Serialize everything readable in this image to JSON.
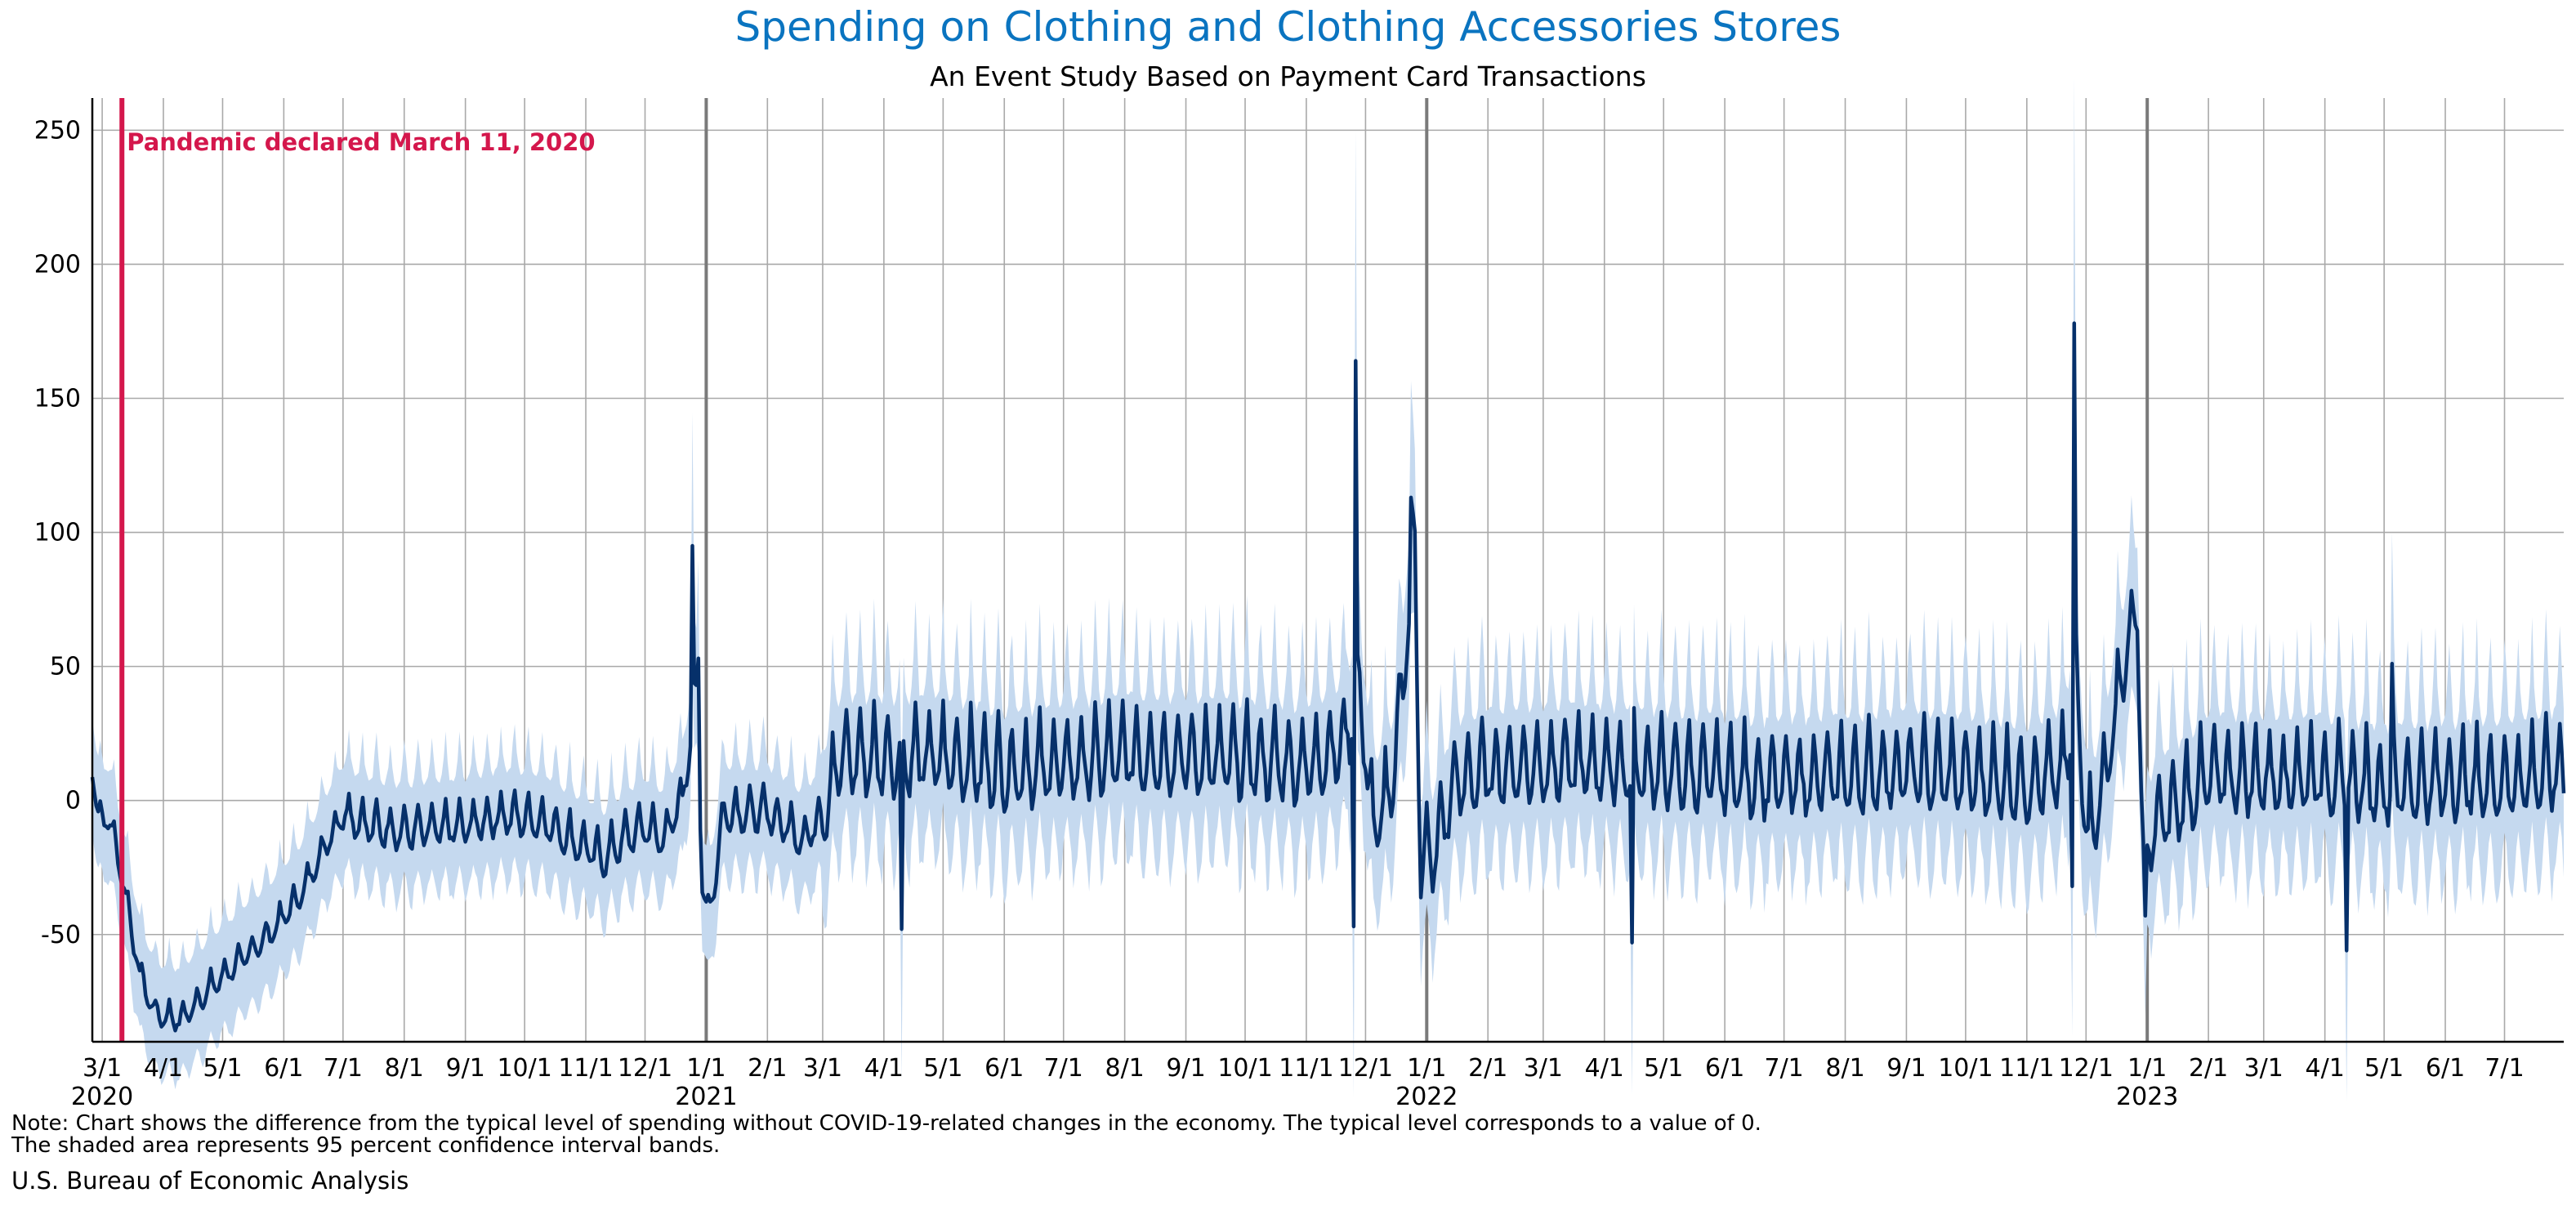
{
  "chart_data": {
    "type": "line",
    "title": "Spending on Clothing and Clothing Accessories Stores",
    "subtitle": "An Event Study Based on Payment Card Transactions",
    "ylim": [
      -90,
      262
    ],
    "yticks": [
      250,
      200,
      150,
      100,
      50,
      0,
      -50
    ],
    "x_range": [
      "2020-02-25",
      "2023-07-31"
    ],
    "grid": true,
    "xtick_labels": [
      {
        "date": "2020-03-01",
        "label": "3/1"
      },
      {
        "date": "2020-04-01",
        "label": "4/1"
      },
      {
        "date": "2020-05-01",
        "label": "5/1"
      },
      {
        "date": "2020-06-01",
        "label": "6/1"
      },
      {
        "date": "2020-07-01",
        "label": "7/1"
      },
      {
        "date": "2020-08-01",
        "label": "8/1"
      },
      {
        "date": "2020-09-01",
        "label": "9/1"
      },
      {
        "date": "2020-10-01",
        "label": "10/1"
      },
      {
        "date": "2020-11-01",
        "label": "11/1"
      },
      {
        "date": "2020-12-01",
        "label": "12/1"
      },
      {
        "date": "2021-01-01",
        "label": "1/1"
      },
      {
        "date": "2021-02-01",
        "label": "2/1"
      },
      {
        "date": "2021-03-01",
        "label": "3/1"
      },
      {
        "date": "2021-04-01",
        "label": "4/1"
      },
      {
        "date": "2021-05-01",
        "label": "5/1"
      },
      {
        "date": "2021-06-01",
        "label": "6/1"
      },
      {
        "date": "2021-07-01",
        "label": "7/1"
      },
      {
        "date": "2021-08-01",
        "label": "8/1"
      },
      {
        "date": "2021-09-01",
        "label": "9/1"
      },
      {
        "date": "2021-10-01",
        "label": "10/1"
      },
      {
        "date": "2021-11-01",
        "label": "11/1"
      },
      {
        "date": "2021-12-01",
        "label": "12/1"
      },
      {
        "date": "2022-01-01",
        "label": "1/1"
      },
      {
        "date": "2022-02-01",
        "label": "2/1"
      },
      {
        "date": "2022-03-01",
        "label": "3/1"
      },
      {
        "date": "2022-04-01",
        "label": "4/1"
      },
      {
        "date": "2022-05-01",
        "label": "5/1"
      },
      {
        "date": "2022-06-01",
        "label": "6/1"
      },
      {
        "date": "2022-07-01",
        "label": "7/1"
      },
      {
        "date": "2022-08-01",
        "label": "8/1"
      },
      {
        "date": "2022-09-01",
        "label": "9/1"
      },
      {
        "date": "2022-10-01",
        "label": "10/1"
      },
      {
        "date": "2022-11-01",
        "label": "11/1"
      },
      {
        "date": "2022-12-01",
        "label": "12/1"
      },
      {
        "date": "2023-01-01",
        "label": "1/1"
      },
      {
        "date": "2023-02-01",
        "label": "2/1"
      },
      {
        "date": "2023-03-01",
        "label": "3/1"
      },
      {
        "date": "2023-04-01",
        "label": "4/1"
      },
      {
        "date": "2023-05-01",
        "label": "5/1"
      },
      {
        "date": "2023-06-01",
        "label": "6/1"
      },
      {
        "date": "2023-07-01",
        "label": "7/1"
      }
    ],
    "year_labels": [
      {
        "date": "2020-03-01",
        "label": "2020"
      },
      {
        "date": "2021-01-01",
        "label": "2021"
      },
      {
        "date": "2022-01-01",
        "label": "2022"
      },
      {
        "date": "2023-01-01",
        "label": "2023"
      }
    ],
    "year_boundaries": [
      "2021-01-01",
      "2022-01-01",
      "2023-01-01"
    ],
    "event_line": {
      "date": "2020-03-11",
      "label": "Pandemic declared March 11, 2020",
      "color": "#d4174c"
    },
    "series": [
      {
        "line_color": "#06306a",
        "band_color": "#c5d9ef",
        "anchors": [
          [
            "2020-02-25",
            12
          ],
          [
            "2020-02-28",
            -6
          ],
          [
            "2020-03-05",
            -8
          ],
          [
            "2020-03-11",
            -28
          ],
          [
            "2020-03-20",
            -65
          ],
          [
            "2020-03-28",
            -80
          ],
          [
            "2020-04-10",
            -82
          ],
          [
            "2020-04-25",
            -70
          ],
          [
            "2020-05-10",
            -60
          ],
          [
            "2020-05-25",
            -50
          ],
          [
            "2020-06-10",
            -35
          ],
          [
            "2020-06-20",
            -20
          ],
          [
            "2020-07-01",
            -5
          ],
          [
            "2020-07-15",
            -10
          ],
          [
            "2020-08-01",
            -12
          ],
          [
            "2020-09-01",
            -10
          ],
          [
            "2020-09-20",
            -6
          ],
          [
            "2020-10-10",
            -8
          ],
          [
            "2020-10-25",
            -15
          ],
          [
            "2020-11-10",
            -22
          ],
          [
            "2020-11-20",
            -15
          ],
          [
            "2020-12-01",
            -10
          ],
          [
            "2020-12-10",
            -15
          ],
          [
            "2020-12-20",
            0
          ],
          [
            "2020-12-27",
            40
          ],
          [
            "2020-12-30",
            -30
          ],
          [
            "2021-01-02",
            -45
          ],
          [
            "2021-01-10",
            -5
          ],
          [
            "2021-02-01",
            -5
          ],
          [
            "2021-02-20",
            -15
          ],
          [
            "2021-03-01",
            -5
          ],
          [
            "2021-03-10",
            15
          ],
          [
            "2021-04-01",
            15
          ],
          [
            "2021-05-01",
            15
          ],
          [
            "2021-06-01",
            10
          ],
          [
            "2021-07-01",
            12
          ],
          [
            "2021-08-01",
            16
          ],
          [
            "2021-09-01",
            15
          ],
          [
            "2021-10-01",
            14
          ],
          [
            "2021-11-01",
            12
          ],
          [
            "2021-11-20",
            20
          ],
          [
            "2021-11-28",
            40
          ],
          [
            "2021-12-05",
            -12
          ],
          [
            "2021-12-15",
            5
          ],
          [
            "2021-12-26",
            95
          ],
          [
            "2021-12-29",
            -25
          ],
          [
            "2022-01-05",
            -20
          ],
          [
            "2022-01-15",
            5
          ],
          [
            "2022-02-01",
            10
          ],
          [
            "2022-03-01",
            12
          ],
          [
            "2022-04-01",
            12
          ],
          [
            "2022-05-01",
            10
          ],
          [
            "2022-06-01",
            8
          ],
          [
            "2022-07-01",
            6
          ],
          [
            "2022-08-01",
            8
          ],
          [
            "2022-09-01",
            10
          ],
          [
            "2022-10-01",
            8
          ],
          [
            "2022-11-01",
            5
          ],
          [
            "2022-11-20",
            10
          ],
          [
            "2022-11-26",
            40
          ],
          [
            "2022-12-02",
            -15
          ],
          [
            "2022-12-10",
            5
          ],
          [
            "2022-12-20",
            50
          ],
          [
            "2022-12-27",
            70
          ],
          [
            "2022-12-30",
            -25
          ],
          [
            "2023-01-05",
            -10
          ],
          [
            "2023-02-01",
            8
          ],
          [
            "2023-03-01",
            8
          ],
          [
            "2023-04-01",
            8
          ],
          [
            "2023-05-01",
            4
          ],
          [
            "2023-06-01",
            6
          ],
          [
            "2023-07-01",
            6
          ],
          [
            "2023-07-31",
            10
          ]
        ],
        "spikes": [
          [
            "2020-12-25",
            95
          ],
          [
            "2020-12-28",
            53
          ],
          [
            "2021-04-10",
            -48
          ],
          [
            "2021-11-26",
            164
          ],
          [
            "2021-11-25",
            -47
          ],
          [
            "2021-12-24",
            113
          ],
          [
            "2022-04-15",
            -53
          ],
          [
            "2022-11-25",
            178
          ],
          [
            "2022-11-24",
            -32
          ],
          [
            "2022-12-31",
            -43
          ],
          [
            "2023-04-12",
            -56
          ],
          [
            "2023-05-05",
            51
          ]
        ]
      }
    ]
  },
  "footer": {
    "note_line1": "Note: Chart shows the difference from the typical level of spending without COVID-19-related changes in the economy. The typical level corresponds to a value of 0.",
    "note_line2": "The shaded area represents 95 percent confidence interval bands.",
    "source": "U.S. Bureau of Economic Analysis"
  }
}
